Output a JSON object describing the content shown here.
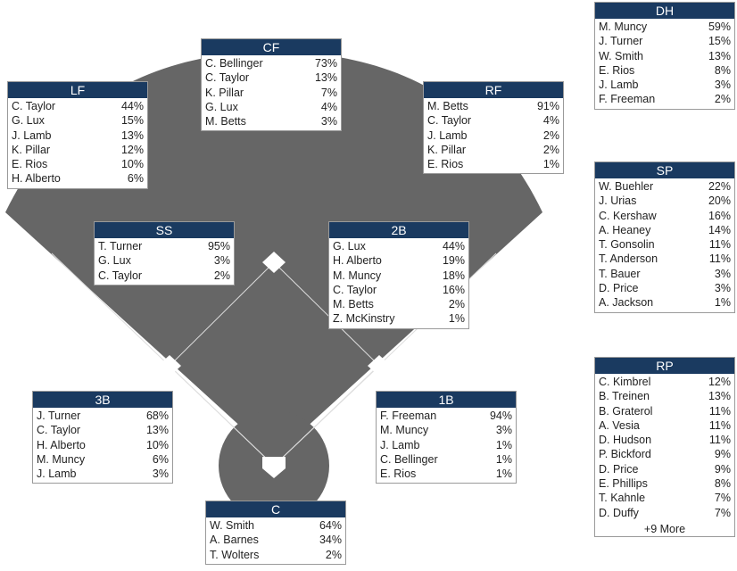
{
  "colors": {
    "field": "#666666",
    "header": "#1a3a60",
    "line": "#dddddd",
    "base": "#ffffff"
  },
  "positions": {
    "CF": {
      "title": "CF",
      "players": [
        {
          "name": "C. Bellinger",
          "pct": "73%"
        },
        {
          "name": "C. Taylor",
          "pct": "13%"
        },
        {
          "name": "K. Pillar",
          "pct": "7%"
        },
        {
          "name": "G. Lux",
          "pct": "4%"
        },
        {
          "name": "M. Betts",
          "pct": "3%"
        }
      ]
    },
    "LF": {
      "title": "LF",
      "players": [
        {
          "name": "C. Taylor",
          "pct": "44%"
        },
        {
          "name": "G. Lux",
          "pct": "15%"
        },
        {
          "name": "J. Lamb",
          "pct": "13%"
        },
        {
          "name": "K. Pillar",
          "pct": "12%"
        },
        {
          "name": "E. Rios",
          "pct": "10%"
        },
        {
          "name": "H. Alberto",
          "pct": "6%"
        }
      ]
    },
    "RF": {
      "title": "RF",
      "players": [
        {
          "name": "M. Betts",
          "pct": "91%"
        },
        {
          "name": "C. Taylor",
          "pct": "4%"
        },
        {
          "name": "J. Lamb",
          "pct": "2%"
        },
        {
          "name": "K. Pillar",
          "pct": "2%"
        },
        {
          "name": "E. Rios",
          "pct": "1%"
        }
      ]
    },
    "DH": {
      "title": "DH",
      "players": [
        {
          "name": "M. Muncy",
          "pct": "59%"
        },
        {
          "name": "J. Turner",
          "pct": "15%"
        },
        {
          "name": "W. Smith",
          "pct": "13%"
        },
        {
          "name": "E. Rios",
          "pct": "8%"
        },
        {
          "name": "J. Lamb",
          "pct": "3%"
        },
        {
          "name": "F. Freeman",
          "pct": "2%"
        }
      ]
    },
    "SS": {
      "title": "SS",
      "players": [
        {
          "name": "T. Turner",
          "pct": "95%"
        },
        {
          "name": "G. Lux",
          "pct": "3%"
        },
        {
          "name": "C. Taylor",
          "pct": "2%"
        }
      ]
    },
    "2B": {
      "title": "2B",
      "players": [
        {
          "name": "G. Lux",
          "pct": "44%"
        },
        {
          "name": "H. Alberto",
          "pct": "19%"
        },
        {
          "name": "M. Muncy",
          "pct": "18%"
        },
        {
          "name": "C. Taylor",
          "pct": "16%"
        },
        {
          "name": "M. Betts",
          "pct": "2%"
        },
        {
          "name": "Z. McKinstry",
          "pct": "1%"
        }
      ]
    },
    "SP": {
      "title": "SP",
      "players": [
        {
          "name": "W. Buehler",
          "pct": "22%"
        },
        {
          "name": "J. Urias",
          "pct": "20%"
        },
        {
          "name": "C. Kershaw",
          "pct": "16%"
        },
        {
          "name": "A. Heaney",
          "pct": "14%"
        },
        {
          "name": "T. Gonsolin",
          "pct": "11%"
        },
        {
          "name": "T. Anderson",
          "pct": "11%"
        },
        {
          "name": "T. Bauer",
          "pct": "3%"
        },
        {
          "name": "D. Price",
          "pct": "3%"
        },
        {
          "name": "A. Jackson",
          "pct": "1%"
        }
      ]
    },
    "RP": {
      "title": "RP",
      "players": [
        {
          "name": "C. Kimbrel",
          "pct": "12%"
        },
        {
          "name": "B. Treinen",
          "pct": "13%"
        },
        {
          "name": "B. Graterol",
          "pct": "11%"
        },
        {
          "name": "A. Vesia",
          "pct": "11%"
        },
        {
          "name": "D. Hudson",
          "pct": "11%"
        },
        {
          "name": "P. Bickford",
          "pct": "9%"
        },
        {
          "name": "D. Price",
          "pct": "9%"
        },
        {
          "name": "E. Phillips",
          "pct": "8%"
        },
        {
          "name": "T. Kahnle",
          "pct": "7%"
        },
        {
          "name": "D. Duffy",
          "pct": "7%"
        }
      ],
      "more": "+9 More"
    },
    "3B": {
      "title": "3B",
      "players": [
        {
          "name": "J. Turner",
          "pct": "68%"
        },
        {
          "name": "C. Taylor",
          "pct": "13%"
        },
        {
          "name": "H. Alberto",
          "pct": "10%"
        },
        {
          "name": "M. Muncy",
          "pct": "6%"
        },
        {
          "name": "J. Lamb",
          "pct": "3%"
        }
      ]
    },
    "1B": {
      "title": "1B",
      "players": [
        {
          "name": "F. Freeman",
          "pct": "94%"
        },
        {
          "name": "M. Muncy",
          "pct": "3%"
        },
        {
          "name": "J. Lamb",
          "pct": "1%"
        },
        {
          "name": "C. Bellinger",
          "pct": "1%"
        },
        {
          "name": "E. Rios",
          "pct": "1%"
        }
      ]
    },
    "C": {
      "title": "C",
      "players": [
        {
          "name": "W. Smith",
          "pct": "64%"
        },
        {
          "name": "A. Barnes",
          "pct": "34%"
        },
        {
          "name": "T. Wolters",
          "pct": "2%"
        }
      ]
    }
  }
}
